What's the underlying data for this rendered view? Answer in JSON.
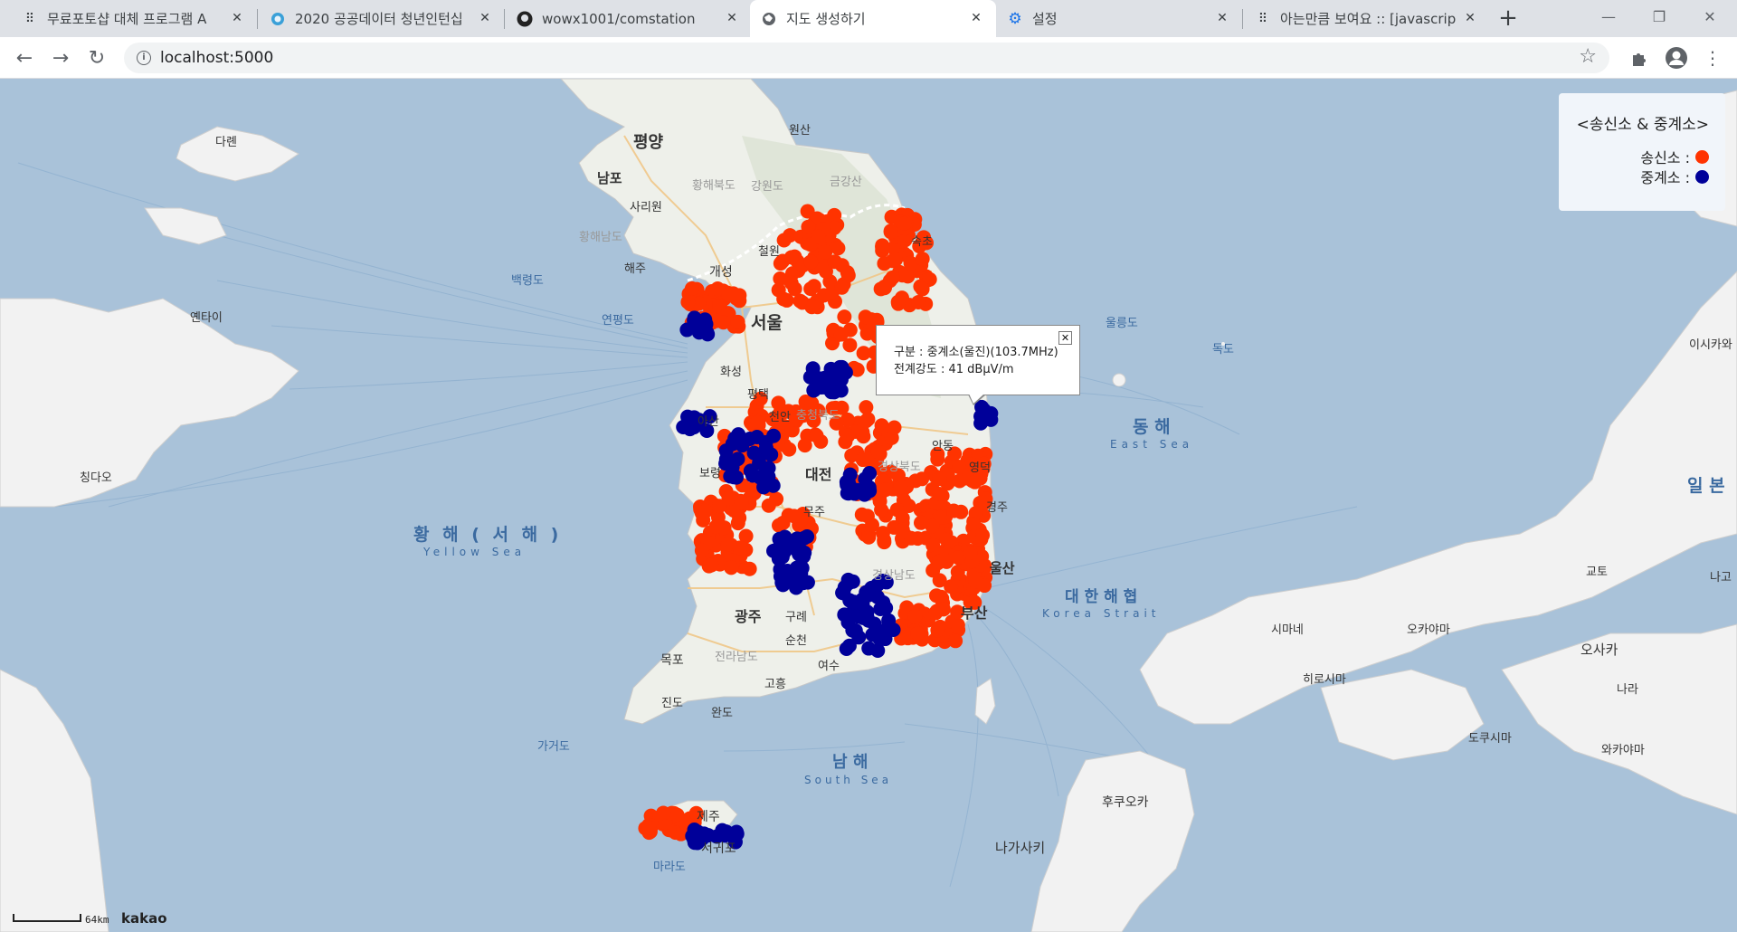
{
  "tabs": [
    {
      "title": "무료포토샵 대체 프로그램 A",
      "icon": "sparkle-icon",
      "active": false
    },
    {
      "title": "2020 공공데이터 청년인턴십",
      "icon": "circle-logo-icon",
      "active": false
    },
    {
      "title": "wowx1001/comstation",
      "icon": "github-icon",
      "active": false
    },
    {
      "title": "지도 생성하기",
      "icon": "globe-icon",
      "active": true
    },
    {
      "title": "설정",
      "icon": "gear-icon",
      "active": false
    },
    {
      "title": "아는만큼 보여요 :: [javascrip",
      "icon": "sparkle-icon",
      "active": false
    }
  ],
  "toolbar": {
    "url": "localhost:5000"
  },
  "legend": {
    "title": "<송신소 & 중계소>",
    "items": [
      {
        "label": "송신소 :",
        "color": "#ff3300"
      },
      {
        "label": "중계소 :",
        "color": "#000099"
      }
    ]
  },
  "infowindow": {
    "line1": "구분 : 중계소(울진)(103.7MHz)",
    "line2": "전계강도 : 41 dBμV/m"
  },
  "scale": {
    "label": "64km",
    "provider": "kakao"
  },
  "map_labels": {
    "cities": [
      "평양",
      "남포",
      "사리원",
      "원산",
      "해주",
      "개성",
      "서울",
      "화성",
      "평택",
      "천안",
      "대전",
      "보령",
      "무주",
      "광주",
      "구례",
      "순천",
      "목포",
      "여수",
      "고흥",
      "진도",
      "완도",
      "제주",
      "서귀포",
      "마라도",
      "부산",
      "울산",
      "경주",
      "영덕",
      "안동",
      "충주",
      "속초",
      "철원",
      "후쿠오카",
      "나가사키",
      "시마네",
      "히로시마",
      "오카야마",
      "오사카",
      "교토",
      "나라",
      "와카야마",
      "도쿠시마",
      "이시카와",
      "나고",
      "다롄",
      "옌타이",
      "칭다오",
      "울릉도",
      "독도",
      "백령도",
      "연평도",
      "가거도"
    ],
    "regions": [
      "황해남도",
      "황해북도",
      "강원도",
      "금강산",
      "충청북도",
      "경상북도",
      "전라남도",
      "경상남도"
    ],
    "seas": [
      {
        "name": "황 해 ( 서 해 )",
        "en": "Yellow Sea"
      },
      {
        "name": "동 해",
        "en": "East Sea"
      },
      {
        "name": "대 한 해 협",
        "en": "Korea Strait"
      },
      {
        "name": "남 해",
        "en": "South Sea"
      },
      {
        "name": "일 본",
        "en": ""
      }
    ]
  }
}
